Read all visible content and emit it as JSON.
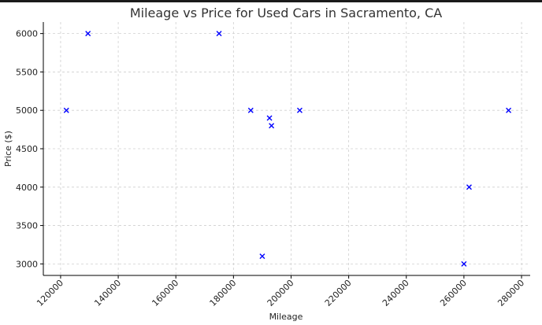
{
  "chart_data": {
    "type": "scatter",
    "title": "Mileage vs Price for Used Cars in Sacramento, CA",
    "xlabel": "Mileage",
    "ylabel": "Price ($)",
    "xlim": [
      114000,
      283000
    ],
    "ylim": [
      2850,
      6150
    ],
    "x_ticks": [
      120000,
      140000,
      160000,
      180000,
      200000,
      220000,
      240000,
      260000,
      280000
    ],
    "y_ticks": [
      3000,
      3500,
      4000,
      4500,
      5000,
      5500,
      6000
    ],
    "grid": true,
    "marker": "x",
    "marker_color": "#0000ff",
    "points": [
      {
        "x": 122000,
        "y": 5000
      },
      {
        "x": 129500,
        "y": 6000
      },
      {
        "x": 175000,
        "y": 6000
      },
      {
        "x": 186000,
        "y": 5000
      },
      {
        "x": 190000,
        "y": 3100
      },
      {
        "x": 192500,
        "y": 4900
      },
      {
        "x": 193200,
        "y": 4800
      },
      {
        "x": 203000,
        "y": 5000
      },
      {
        "x": 260000,
        "y": 3000
      },
      {
        "x": 261800,
        "y": 4000
      },
      {
        "x": 275500,
        "y": 5000
      }
    ]
  }
}
